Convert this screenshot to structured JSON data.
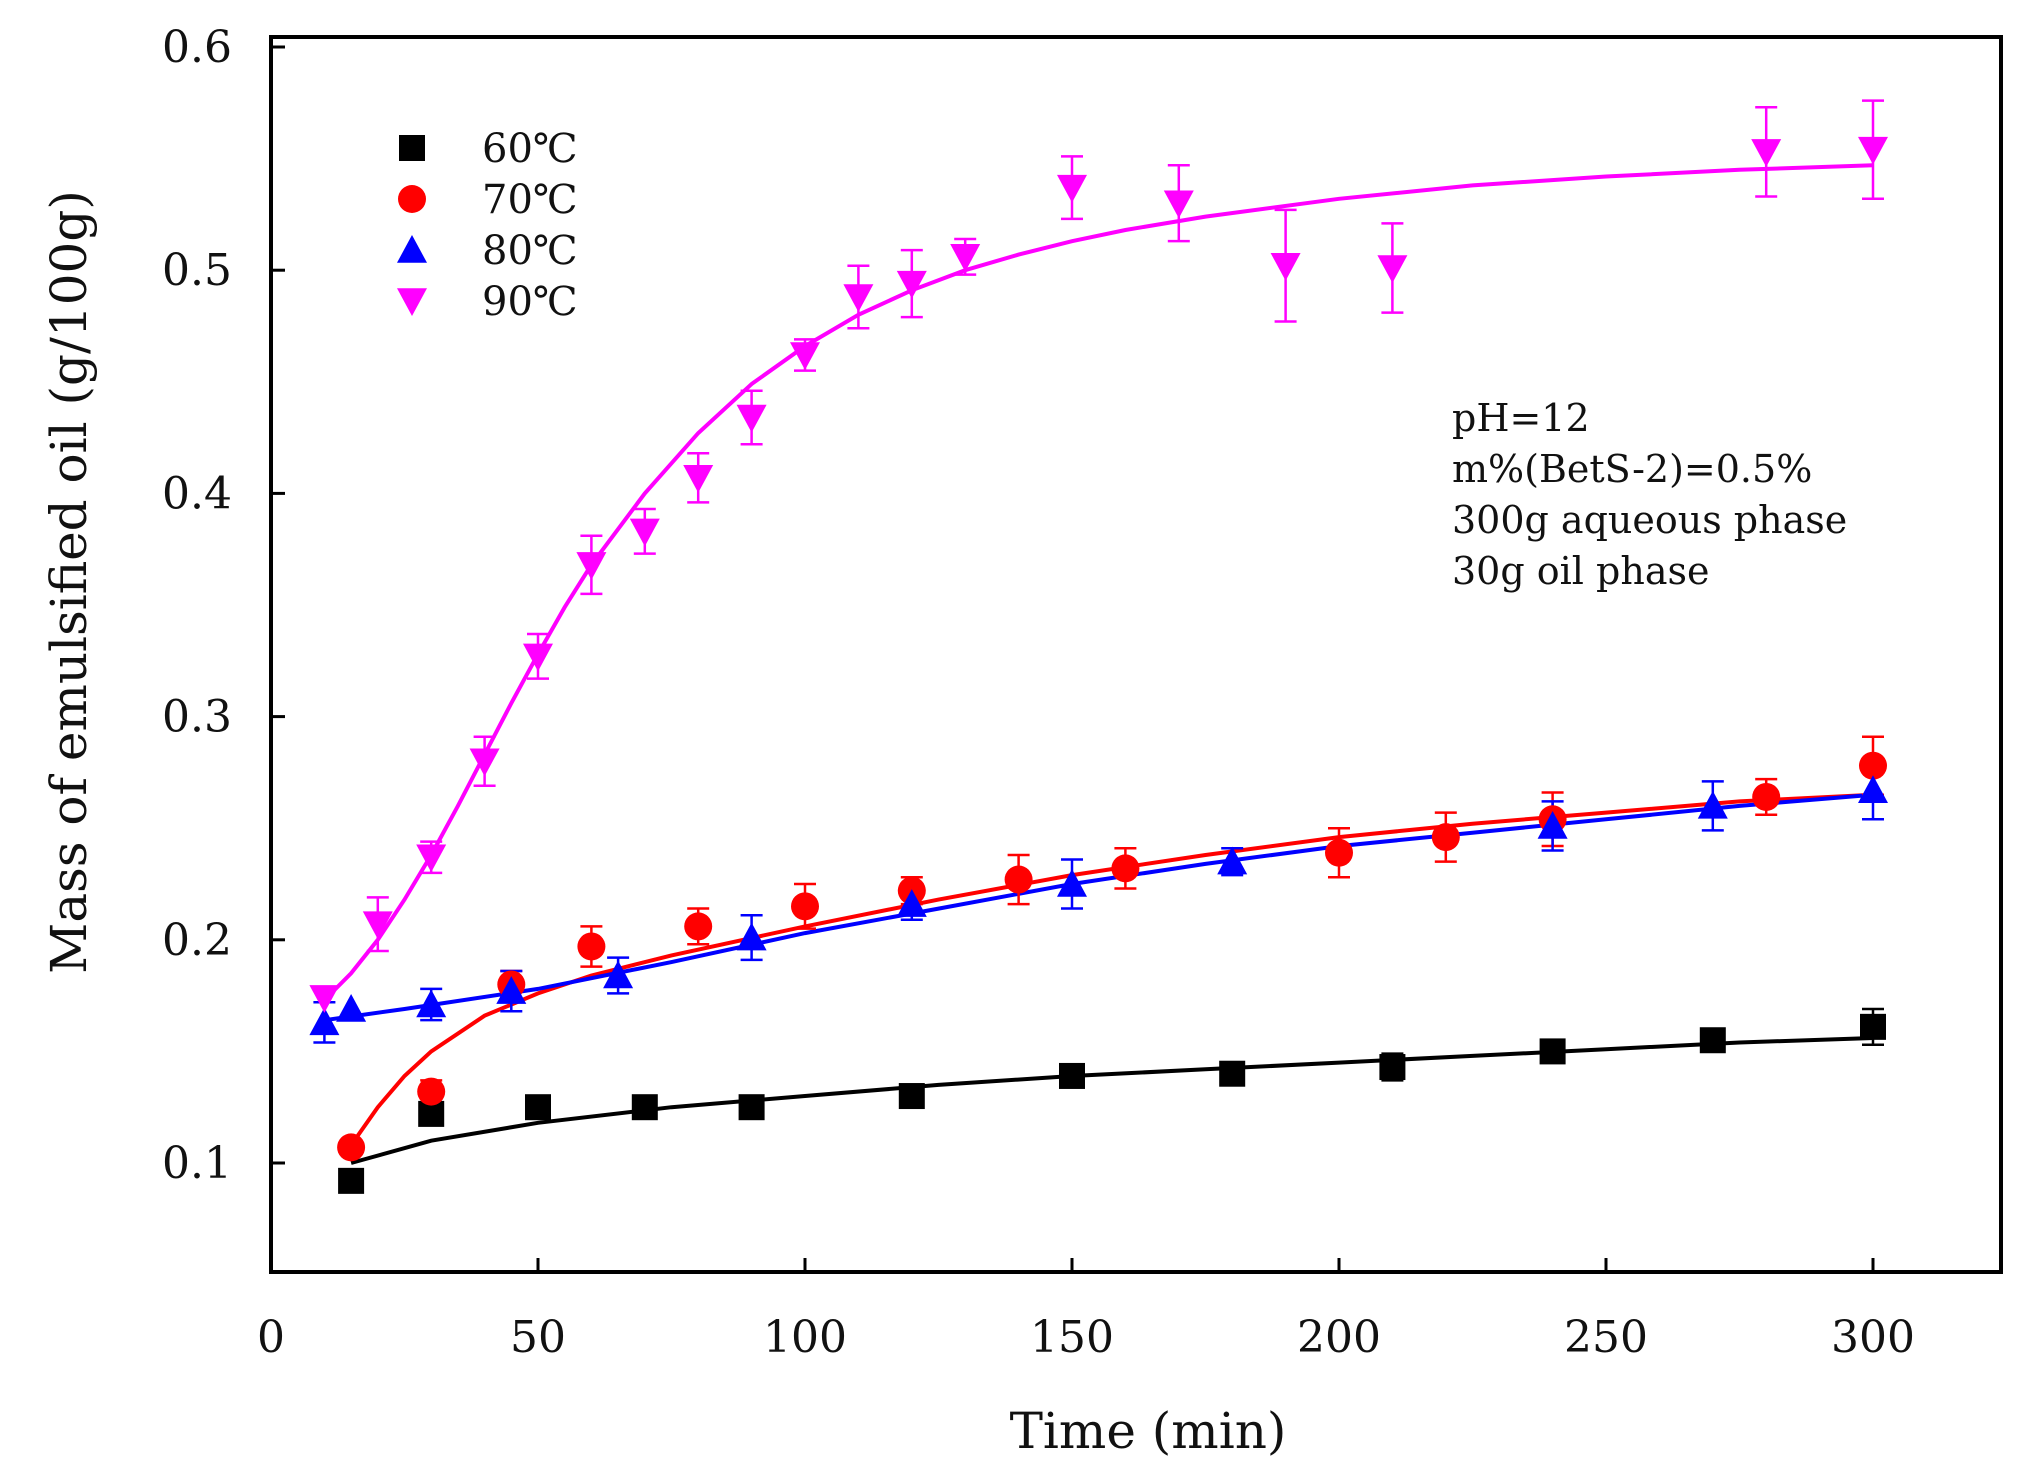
{
  "chart_data": {
    "type": "scatter",
    "xlabel": "Time (min)",
    "ylabel": "Mass of emulsified oil (g/100g)",
    "xlim": [
      0,
      325
    ],
    "ylim": [
      0.05,
      0.6
    ],
    "x_ticks": [
      0,
      50,
      100,
      150,
      200,
      250,
      300
    ],
    "x_tick_labels": [
      "0",
      "50",
      "100",
      "150",
      "200",
      "250",
      "300"
    ],
    "y_ticks": [
      0.1,
      0.2,
      0.3,
      0.4,
      0.5,
      0.6
    ],
    "y_tick_labels": [
      "0.1",
      "0.2",
      "0.3",
      "0.4",
      "0.5",
      "0.6"
    ],
    "grid": false,
    "legend_position": "top-left",
    "annotations": [
      "pH=12",
      "m%(BetS-2)=0.5%",
      "300g aqueous phase",
      "30g oil phase"
    ],
    "series": [
      {
        "name": "60℃",
        "color": "#000000",
        "marker": "square",
        "x": [
          15,
          30,
          50,
          70,
          90,
          120,
          150,
          180,
          210,
          240,
          270,
          300
        ],
        "y": [
          0.092,
          0.122,
          0.125,
          0.125,
          0.125,
          0.13,
          0.139,
          0.14,
          0.143,
          0.15,
          0.155,
          0.161
        ],
        "err": [
          0,
          0,
          0,
          0,
          0,
          0,
          0,
          0,
          0.006,
          0.005,
          0.004,
          0.008
        ],
        "fit_x": [
          15,
          30,
          50,
          75,
          100,
          125,
          150,
          175,
          200,
          225,
          250,
          275,
          300
        ],
        "fit_y": [
          0.1,
          0.11,
          0.118,
          0.125,
          0.13,
          0.135,
          0.139,
          0.142,
          0.145,
          0.148,
          0.151,
          0.154,
          0.156
        ]
      },
      {
        "name": "70℃",
        "color": "#ff0000",
        "marker": "circle",
        "x": [
          15,
          30,
          45,
          60,
          80,
          100,
          120,
          140,
          160,
          200,
          220,
          240,
          280,
          300
        ],
        "y": [
          0.107,
          0.132,
          0.18,
          0.197,
          0.206,
          0.215,
          0.222,
          0.227,
          0.232,
          0.239,
          0.246,
          0.254,
          0.264,
          0.278
        ],
        "err": [
          0,
          0.005,
          0.006,
          0.009,
          0.008,
          0.01,
          0.006,
          0.011,
          0.009,
          0.011,
          0.011,
          0.012,
          0.008,
          0.013
        ],
        "fit_x": [
          15,
          20,
          25,
          30,
          40,
          50,
          60,
          75,
          100,
          125,
          150,
          175,
          200,
          225,
          250,
          275,
          300
        ],
        "fit_y": [
          0.108,
          0.125,
          0.139,
          0.15,
          0.166,
          0.176,
          0.184,
          0.193,
          0.206,
          0.218,
          0.229,
          0.238,
          0.246,
          0.252,
          0.257,
          0.262,
          0.265
        ]
      },
      {
        "name": "80℃",
        "color": "#0000ff",
        "marker": "triangle-up",
        "x": [
          10,
          15,
          30,
          45,
          65,
          90,
          120,
          150,
          180,
          240,
          270,
          300
        ],
        "y": [
          0.163,
          0.169,
          0.171,
          0.177,
          0.184,
          0.201,
          0.216,
          0.225,
          0.235,
          0.251,
          0.26,
          0.267
        ],
        "err": [
          0.009,
          0,
          0.007,
          0.009,
          0.008,
          0.01,
          0.007,
          0.011,
          0.006,
          0.011,
          0.011,
          0.013
        ],
        "fit_x": [
          10,
          25,
          50,
          75,
          100,
          125,
          150,
          175,
          200,
          225,
          250,
          275,
          300
        ],
        "fit_y": [
          0.164,
          0.169,
          0.178,
          0.19,
          0.203,
          0.214,
          0.225,
          0.234,
          0.242,
          0.248,
          0.254,
          0.26,
          0.265
        ]
      },
      {
        "name": "90℃",
        "color": "#ff00ff",
        "marker": "triangle-down",
        "x": [
          10,
          20,
          30,
          40,
          50,
          60,
          70,
          80,
          90,
          100,
          110,
          120,
          130,
          150,
          170,
          190,
          210,
          280,
          300
        ],
        "y": [
          0.174,
          0.207,
          0.237,
          0.28,
          0.327,
          0.368,
          0.383,
          0.407,
          0.434,
          0.462,
          0.488,
          0.494,
          0.506,
          0.537,
          0.53,
          0.502,
          0.501,
          0.553,
          0.554
        ],
        "err": [
          0,
          0.012,
          0.007,
          0.011,
          0.01,
          0.013,
          0.01,
          0.011,
          0.012,
          0.007,
          0.014,
          0.015,
          0.008,
          0.014,
          0.017,
          0.025,
          0.02,
          0.02,
          0.022
        ],
        "fit_x": [
          10,
          15,
          20,
          25,
          30,
          35,
          40,
          45,
          50,
          55,
          60,
          70,
          80,
          90,
          100,
          110,
          120,
          130,
          140,
          150,
          160,
          175,
          200,
          225,
          250,
          275,
          300
        ],
        "fit_y": [
          0.173,
          0.185,
          0.2,
          0.218,
          0.238,
          0.26,
          0.283,
          0.306,
          0.328,
          0.349,
          0.368,
          0.4,
          0.427,
          0.449,
          0.466,
          0.48,
          0.491,
          0.5,
          0.507,
          0.513,
          0.518,
          0.524,
          0.532,
          0.538,
          0.542,
          0.545,
          0.547
        ]
      }
    ]
  }
}
